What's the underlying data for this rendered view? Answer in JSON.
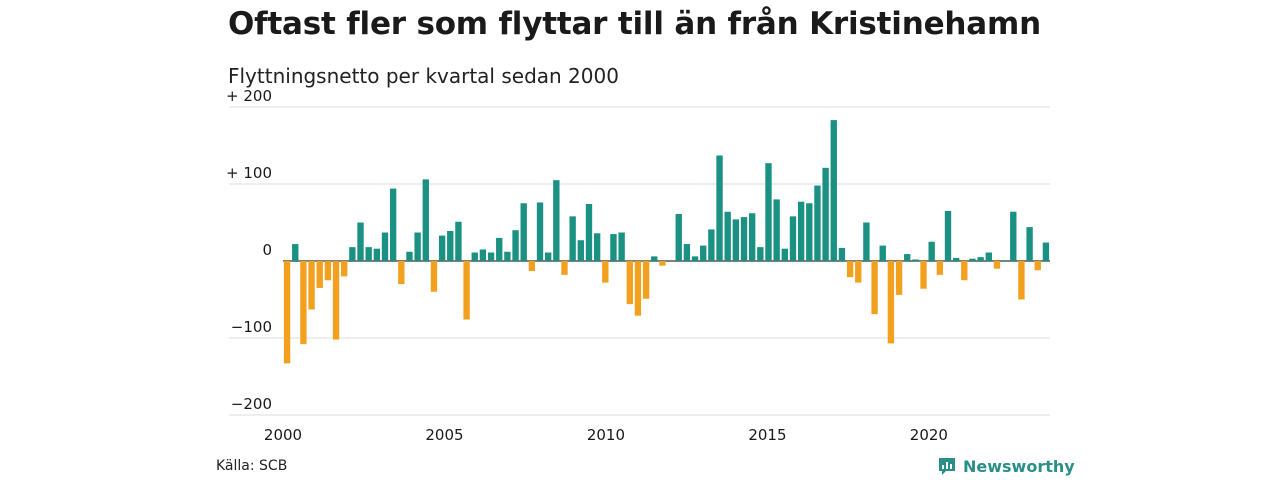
{
  "title": "Oftast fler som flyttar till än från Kristinehamn",
  "subtitle": "Flyttningsnetto per kvartal sedan 2000",
  "source": "Källa: SCB",
  "brand": "Newsworthy",
  "colors": {
    "positive": "#1a9183",
    "negative": "#f2a11f",
    "grid": "#dddddd",
    "baseline": "#333333",
    "brand": "#2a8f87"
  },
  "chart_data": {
    "type": "bar",
    "title": "Oftast fler som flyttar till än från Kristinehamn",
    "subtitle": "Flyttningsnetto per kvartal sedan 2000",
    "xlabel": "",
    "ylabel": "",
    "ylim": [
      -200,
      200
    ],
    "xlim": [
      2000,
      2023.75
    ],
    "grid": true,
    "legend": "none",
    "y_ticks": [
      {
        "value": 200,
        "label": "+ 200"
      },
      {
        "value": 100,
        "label": "+ 100"
      },
      {
        "value": 0,
        "label": "0"
      },
      {
        "value": -100,
        "label": "−100"
      },
      {
        "value": -200,
        "label": "−200"
      }
    ],
    "x_ticks": [
      {
        "value": 2000,
        "label": "2000"
      },
      {
        "value": 2005,
        "label": "2005"
      },
      {
        "value": 2010,
        "label": "2010"
      },
      {
        "value": 2015,
        "label": "2015"
      },
      {
        "value": 2020,
        "label": "2020"
      }
    ],
    "quarter_start": "2000 Q1",
    "values": [
      -133,
      22,
      -108,
      -63,
      -35,
      -25,
      -102,
      -20,
      18,
      50,
      18,
      16,
      37,
      94,
      -30,
      12,
      37,
      106,
      -40,
      33,
      39,
      51,
      -76,
      11,
      15,
      11,
      30,
      12,
      40,
      75,
      -13,
      76,
      11,
      105,
      -18,
      58,
      27,
      74,
      36,
      -28,
      35,
      37,
      -56,
      -71,
      -49,
      6,
      -6,
      0,
      61,
      22,
      6,
      20,
      41,
      137,
      64,
      54,
      57,
      62,
      18,
      127,
      80,
      16,
      58,
      77,
      75,
      98,
      121,
      183,
      17,
      -21,
      -28,
      50,
      -69,
      20,
      -107,
      -44,
      9,
      2,
      -36,
      25,
      -18,
      65,
      4,
      -25,
      3,
      5,
      11,
      -10,
      1,
      64,
      -50,
      44,
      -12,
      24
    ]
  }
}
